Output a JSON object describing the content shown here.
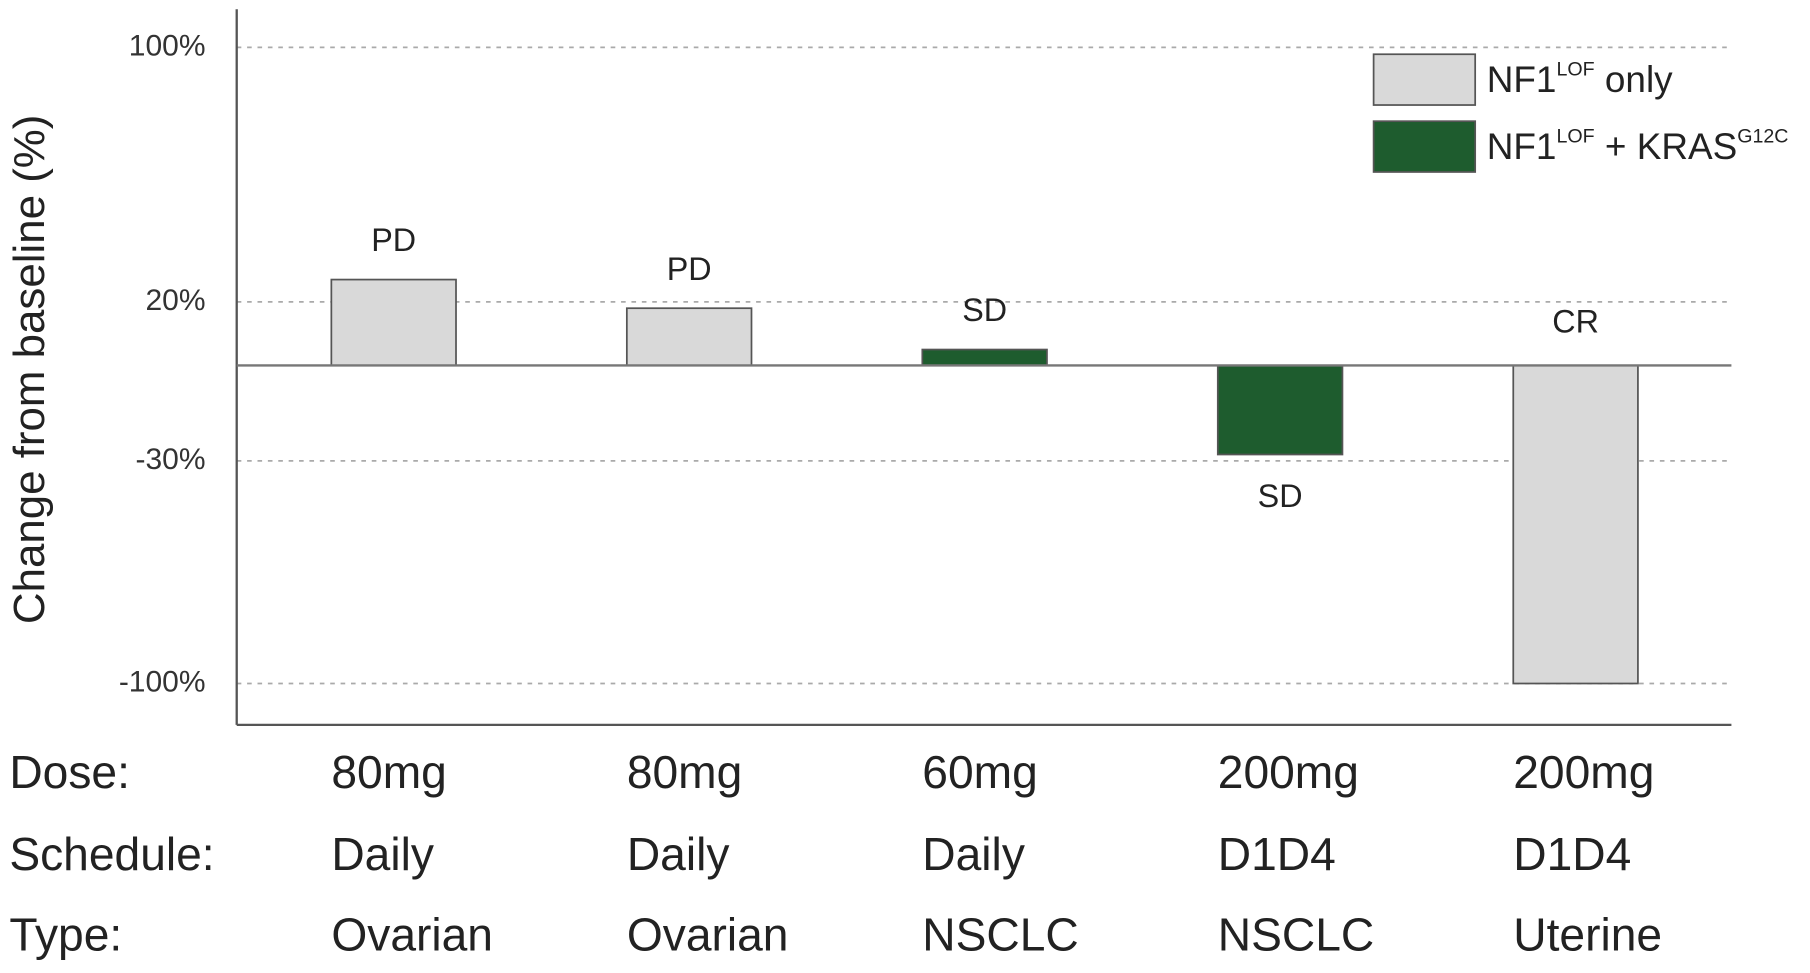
{
  "chart_data": {
    "type": "bar",
    "ylabel": "Change from baseline (%)",
    "ylim": [
      -113,
      112
    ],
    "yticks": [
      {
        "value": 100,
        "label": "100%"
      },
      {
        "value": 20,
        "label": "20%"
      },
      {
        "value": -30,
        "label": "-30%"
      },
      {
        "value": -100,
        "label": "-100%"
      }
    ],
    "grid": true,
    "legend": "upper right",
    "series": [
      {
        "name": [
          "NF1",
          "LOF",
          " only"
        ],
        "color": "#d9d9d9",
        "values": [
          27,
          18,
          null,
          null,
          -100
        ]
      },
      {
        "name": [
          "NF1",
          "LOF",
          " + KRAS",
          "G12C"
        ],
        "color": "#1e5c2e",
        "values": [
          null,
          null,
          5,
          -28,
          null
        ]
      }
    ],
    "response": [
      "PD",
      "PD",
      "SD",
      "SD",
      "CR"
    ],
    "table": [
      {
        "label": "Dose:",
        "values": [
          "80mg",
          "80mg",
          "60mg",
          "200mg",
          "200mg"
        ]
      },
      {
        "label": "Schedule:",
        "values": [
          "Daily",
          "Daily",
          "Daily",
          "D1D4",
          "D1D4"
        ]
      },
      {
        "label": "Type:",
        "values": [
          "Ovarian",
          "Ovarian",
          "NSCLC",
          "NSCLC",
          "Uterine"
        ]
      }
    ]
  }
}
